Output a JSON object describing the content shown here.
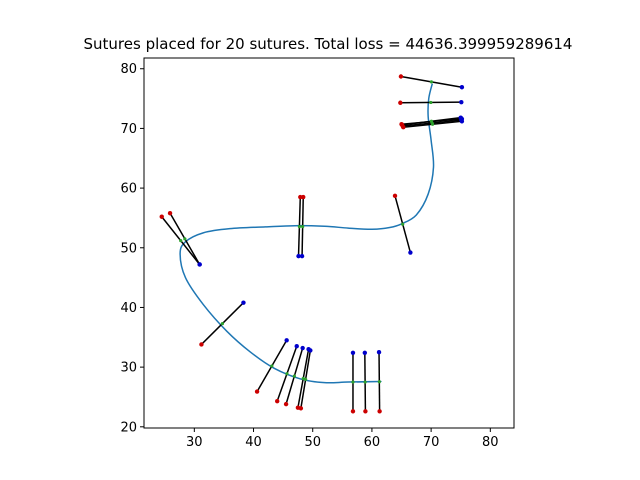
{
  "chart_data": {
    "type": "line",
    "title": "Sutures placed for 20 sutures. Total loss = 44636.399959289614",
    "xlabel": "",
    "ylabel": "",
    "xlim": [
      21.5,
      84.0
    ],
    "ylim": [
      19.8,
      81.8
    ],
    "xticks": [
      30,
      40,
      50,
      60,
      70,
      80
    ],
    "yticks": [
      20,
      30,
      40,
      50,
      60,
      70,
      80
    ],
    "grid": false,
    "colors": {
      "wound_line": "#1f77b4",
      "suture": "#000000",
      "insertion_point": "#cc0000",
      "extraction_point": "#0000cc",
      "center_point": "#2ca02c"
    },
    "series": [
      {
        "type": "curve",
        "points": [
          [
            57.5,
            27.5
          ],
          [
            61.5,
            27.6
          ],
          [
            56.0,
            27.5
          ],
          [
            52.0,
            27.4
          ],
          [
            48.0,
            28.0
          ],
          [
            43.5,
            29.8
          ],
          [
            39.5,
            32.5
          ],
          [
            35.5,
            36.0
          ],
          [
            31.5,
            40.5
          ],
          [
            28.5,
            45.0
          ],
          [
            27.6,
            49.0
          ],
          [
            28.5,
            51.0
          ],
          [
            31.5,
            52.5
          ],
          [
            36.0,
            53.2
          ],
          [
            42.0,
            53.5
          ],
          [
            47.0,
            53.7
          ],
          [
            52.0,
            53.6
          ],
          [
            56.0,
            53.3
          ],
          [
            60.0,
            53.1
          ],
          [
            63.0,
            53.4
          ],
          [
            65.0,
            54.0
          ],
          [
            67.5,
            55.5
          ],
          [
            69.5,
            59.0
          ],
          [
            70.4,
            63.5
          ],
          [
            70.0,
            68.0
          ],
          [
            69.5,
            72.0
          ],
          [
            69.6,
            75.0
          ],
          [
            70.2,
            77.5
          ]
        ]
      },
      {
        "type": "sutures",
        "items": [
          {
            "insertion": [
              25.9,
              55.8
            ],
            "extraction": [
              30.9,
              47.2
            ]
          },
          {
            "insertion": [
              24.5,
              55.2
            ],
            "extraction": [
              30.9,
              47.2
            ]
          },
          {
            "insertion": [
              31.2,
              33.8
            ],
            "extraction": [
              38.3,
              40.8
            ]
          },
          {
            "insertion": [
              40.6,
              25.9
            ],
            "extraction": [
              45.6,
              34.5
            ]
          },
          {
            "insertion": [
              44.0,
              24.3
            ],
            "extraction": [
              47.3,
              33.5
            ]
          },
          {
            "insertion": [
              45.5,
              23.8
            ],
            "extraction": [
              48.3,
              33.2
            ]
          },
          {
            "insertion": [
              47.5,
              23.2
            ],
            "extraction": [
              49.3,
              33.0
            ]
          },
          {
            "insertion": [
              48.0,
              23.1
            ],
            "extraction": [
              49.6,
              32.8
            ]
          },
          {
            "insertion": [
              56.8,
              22.6
            ],
            "extraction": [
              56.8,
              32.4
            ]
          },
          {
            "insertion": [
              58.9,
              22.6
            ],
            "extraction": [
              58.8,
              32.4
            ]
          },
          {
            "insertion": [
              61.3,
              22.6
            ],
            "extraction": [
              61.2,
              32.5
            ]
          },
          {
            "insertion": [
              47.9,
              58.5
            ],
            "extraction": [
              47.6,
              48.6
            ]
          },
          {
            "insertion": [
              48.4,
              58.5
            ],
            "extraction": [
              48.2,
              48.6
            ]
          },
          {
            "insertion": [
              63.9,
              58.7
            ],
            "extraction": [
              66.5,
              49.2
            ]
          },
          {
            "insertion": [
              64.9,
              78.7
            ],
            "extraction": [
              75.2,
              76.9
            ]
          },
          {
            "insertion": [
              64.8,
              74.3
            ],
            "extraction": [
              75.1,
              74.4
            ]
          },
          {
            "insertion": [
              65.0,
              70.7
            ],
            "extraction": [
              75.2,
              71.6
            ]
          },
          {
            "insertion": [
              65.2,
              70.4
            ],
            "extraction": [
              75.1,
              71.4
            ]
          },
          {
            "insertion": [
              65.3,
              70.2
            ],
            "extraction": [
              75.2,
              71.2
            ]
          },
          {
            "insertion": [
              65.1,
              70.6
            ],
            "extraction": [
              75.0,
              71.8
            ]
          }
        ]
      }
    ]
  }
}
